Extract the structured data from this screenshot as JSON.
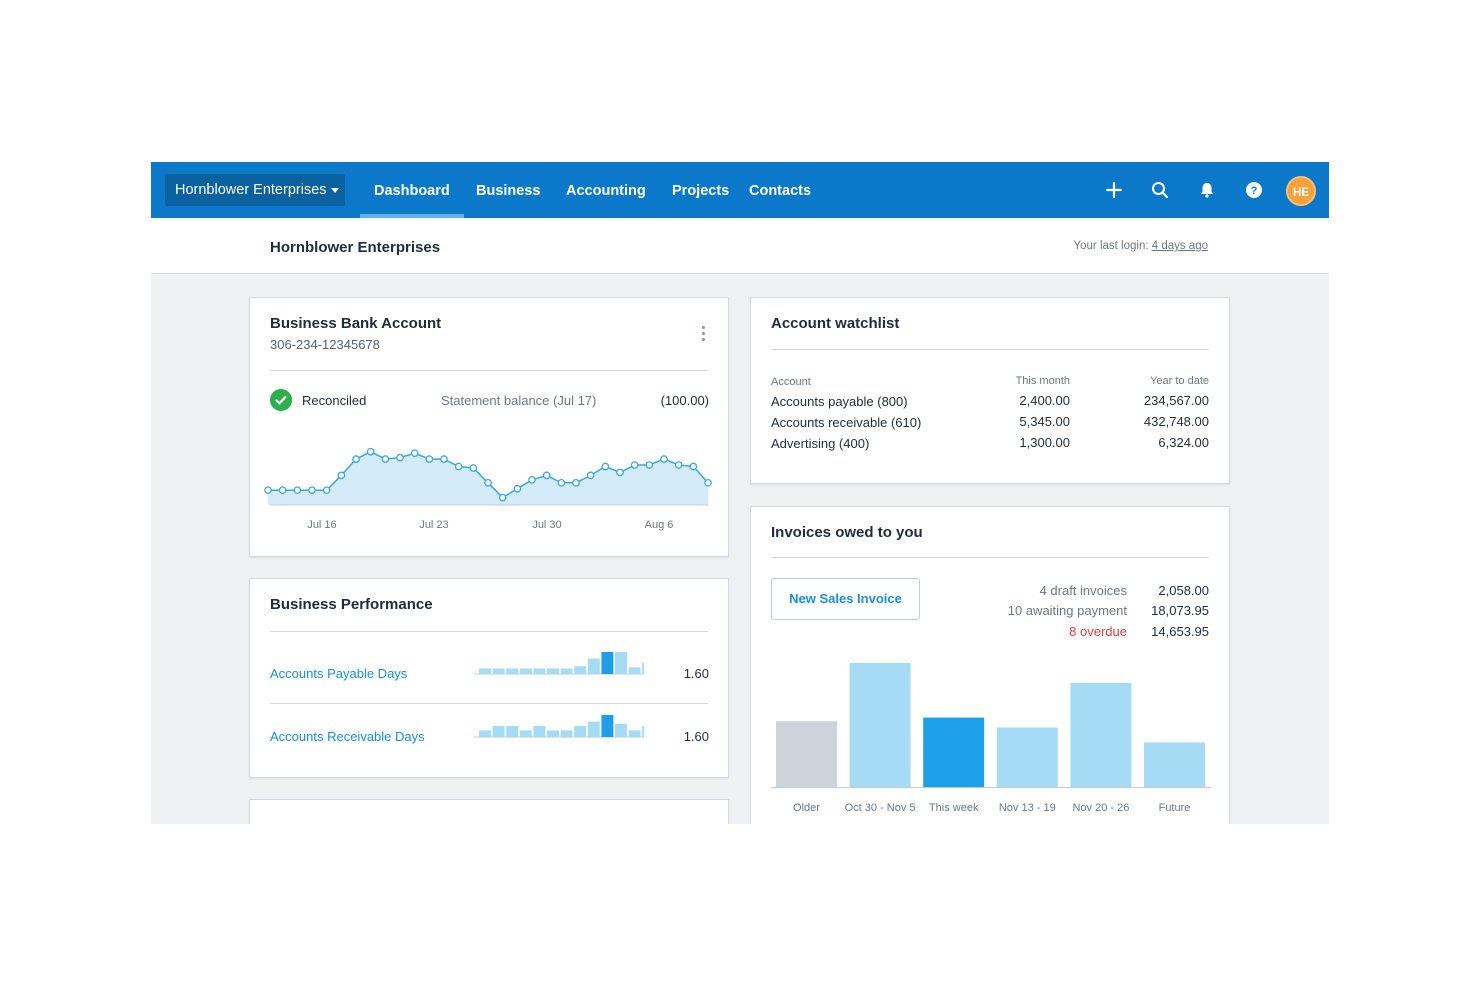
{
  "nav": {
    "org_name": "Hornblower Enterprises",
    "tabs": [
      "Dashboard",
      "Business",
      "Accounting",
      "Projects",
      "Contacts"
    ],
    "active_tab": "Dashboard",
    "avatar_initials": "HE",
    "icons": [
      "plus-icon",
      "search-icon",
      "bell-icon",
      "help-icon"
    ],
    "color": "#0b78c9"
  },
  "header": {
    "title": "Hornblower Enterprises",
    "last_login_label": "Your last login:",
    "last_login_value": "4 days ago"
  },
  "bank": {
    "title": "Business Bank Account",
    "account_number": "306-234-12345678",
    "status": "Reconciled",
    "statement_label": "Statement balance (Jul 17)",
    "statement_value": "(100.00)",
    "x_labels": [
      "Jul 16",
      "Jul 23",
      "Jul 30",
      "Aug 6"
    ],
    "series": [
      0.2,
      0.2,
      0.2,
      0.2,
      0.2,
      0.4,
      0.62,
      0.72,
      0.62,
      0.64,
      0.7,
      0.62,
      0.62,
      0.52,
      0.5,
      0.3,
      0.1,
      0.22,
      0.34,
      0.4,
      0.3,
      0.3,
      0.4,
      0.52,
      0.44,
      0.54,
      0.54,
      0.62,
      0.54,
      0.52,
      0.3
    ]
  },
  "performance": {
    "title": "Business Performance",
    "rows": [
      {
        "label": "Accounts Payable Days",
        "value": "1.60",
        "bars": [
          0.25,
          0.25,
          0.25,
          0.25,
          0.25,
          0.25,
          0.25,
          0.35,
          0.7,
          1.0,
          1.0,
          0.3,
          0.5
        ],
        "highlight": 9
      },
      {
        "label": "Accounts Receivable Days",
        "value": "1.60",
        "bars": [
          0.3,
          0.5,
          0.5,
          0.3,
          0.5,
          0.3,
          0.3,
          0.5,
          0.7,
          1.0,
          0.6,
          0.3,
          0.5
        ],
        "highlight": 9
      }
    ]
  },
  "watchlist": {
    "title": "Account watchlist",
    "columns": [
      "Account",
      "This month",
      "Year to date"
    ],
    "rows": [
      {
        "account": "Accounts payable (800)",
        "month": "2,400.00",
        "ytd": "234,567.00"
      },
      {
        "account": "Accounts receivable (610)",
        "month": "5,345.00",
        "ytd": "432,748.00"
      },
      {
        "account": "Advertising (400)",
        "month": "1,300.00",
        "ytd": "6,324.00"
      }
    ]
  },
  "invoices": {
    "title": "Invoices owed to you",
    "new_button": "New Sales Invoice",
    "summary": [
      {
        "label": "4 draft invoices",
        "value": "2,058.00",
        "overdue": false
      },
      {
        "label": "10 awaiting payment",
        "value": "18,073.95",
        "overdue": false
      },
      {
        "label": "8 overdue",
        "value": "14,653.95",
        "overdue": true
      }
    ],
    "chart_data": {
      "type": "bar",
      "categories": [
        "Older",
        "Oct 30 - Nov 5",
        "This week",
        "Nov 13 - 19",
        "Nov 20 - 26",
        "Future"
      ],
      "values": [
        0.53,
        1.0,
        0.56,
        0.48,
        0.84,
        0.36
      ],
      "colors": [
        "#ccd3da",
        "#a6dbf6",
        "#1ea0e8",
        "#a6dbf6",
        "#a6dbf6",
        "#a6dbf6"
      ]
    }
  }
}
